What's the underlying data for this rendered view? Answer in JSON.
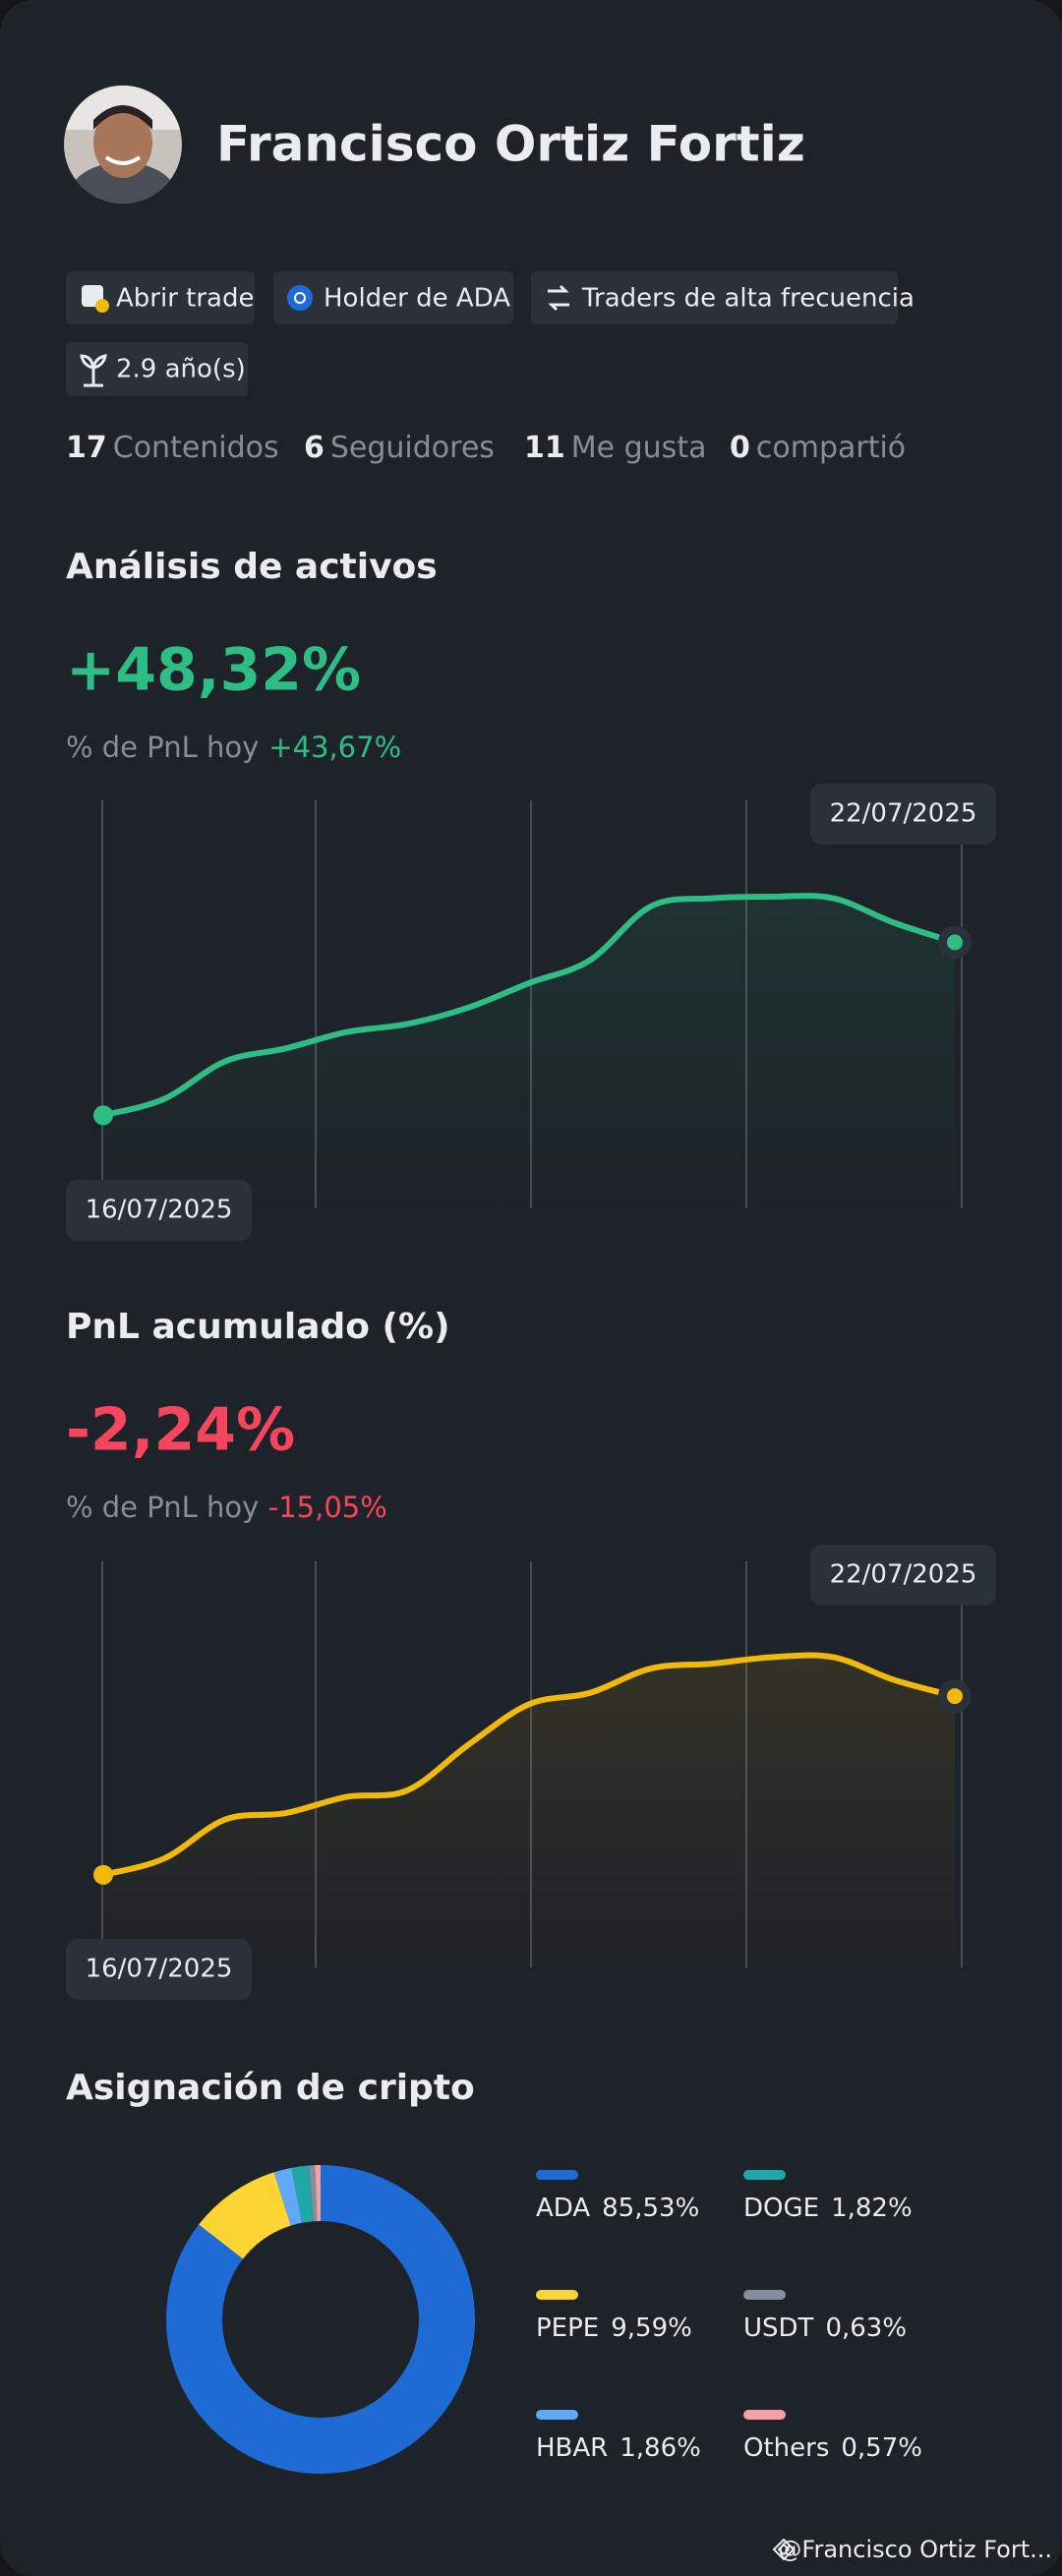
{
  "profile": {
    "name": "Francisco Ortiz Fortiz",
    "tags": [
      "Abrir trade",
      "Holder de ADA",
      "Traders de alta frecuencia",
      "2.9 año(s)"
    ],
    "stats": [
      {
        "count": 17,
        "label": "Contenidos"
      },
      {
        "count": 6,
        "label": "Seguidores"
      },
      {
        "count": 11,
        "label": "Me gusta"
      },
      {
        "count": 0,
        "label": "compartió"
      }
    ]
  },
  "chart_data": [
    {
      "type": "line",
      "title": "Análisis de activos",
      "headline": "+48,32%",
      "subtitle": "% de PnL hoy",
      "change": "+43,67%",
      "categories": [
        "16/07/2025",
        null,
        null,
        null,
        null,
        null,
        null,
        null,
        null,
        null,
        null,
        null,
        null,
        null,
        "22/07/2025"
      ],
      "series": [
        {
          "color": "#2ebd85",
          "values": [
            57,
            67,
            90,
            98,
            108,
            113,
            123,
            138,
            152,
            185,
            190,
            191,
            190,
            175,
            163
          ]
        }
      ],
      "ylim": [
        0,
        250
      ]
    },
    {
      "type": "line",
      "title": "PnL acumulado (%)",
      "headline": "-2,24%",
      "subtitle": "% de PnL hoy",
      "change": "-15,05%",
      "categories": [
        "16/07/2025",
        null,
        null,
        null,
        null,
        null,
        null,
        null,
        null,
        null,
        null,
        null,
        null,
        null,
        "22/07/2025"
      ],
      "series": [
        {
          "color": "#f0b90b",
          "values": [
            57,
            67,
            91,
            95,
            105,
            109,
            137,
            162,
            169,
            184,
            187,
            191,
            191,
            177,
            167
          ]
        }
      ],
      "ylim": [
        0,
        250
      ]
    },
    {
      "type": "pie",
      "title": "Asignación de cripto",
      "categories": [
        "ADA",
        "PEPE",
        "HBAR",
        "DOGE",
        "USDT",
        "Others"
      ],
      "values": [
        85.53,
        9.59,
        1.86,
        1.82,
        0.63,
        0.57
      ],
      "value_labels": [
        "85,53%",
        "9,59%",
        "1,86%",
        "1,82%",
        "0,63%",
        "0,57%"
      ],
      "colors": [
        "#1f6bd6",
        "#fcd535",
        "#5fa8f5",
        "#1fa8a8",
        "#848e9c",
        "#f5a0a8"
      ]
    }
  ],
  "footer": {
    "handle": "@Francisco Ortiz Fort..."
  }
}
